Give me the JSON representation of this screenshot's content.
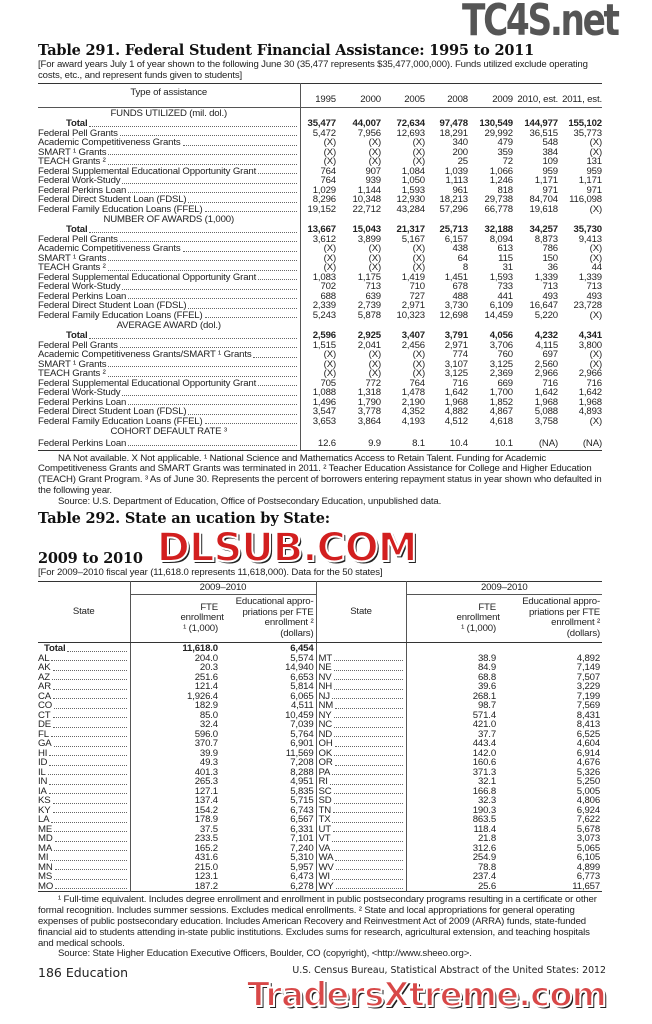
{
  "watermarks": {
    "top": "TC4S.net",
    "middle": "DLSUB.COM",
    "bottom": "TradersXtreme.com"
  },
  "t291": {
    "title": "Table 291. Federal Student Financial Assistance: 1995 to 2011",
    "subtitle": "[For award years July 1 of year shown to the following June 30 (35,477 represents $35,477,000,000). Funds utilized exclude operating costs, etc., and represent funds given to students]",
    "stub_header": "Type of assistance",
    "columns": [
      "1995",
      "2000",
      "2005",
      "2008",
      "2009",
      "2010, est.",
      "2011, est."
    ],
    "sections": [
      {
        "heading": "FUNDS UTILIZED (mil. dol.)",
        "rows": [
          {
            "label": "Total",
            "bold": true,
            "values": [
              "35,477",
              "44,007",
              "72,634",
              "97,478",
              "130,549",
              "144,977",
              "155,102"
            ]
          },
          {
            "label": "Federal Pell Grants",
            "values": [
              "5,472",
              "7,956",
              "12,693",
              "18,291",
              "29,992",
              "36,515",
              "35,773"
            ]
          },
          {
            "label": "Academic Competitiveness Grants",
            "values": [
              "(X)",
              "(X)",
              "(X)",
              "340",
              "479",
              "548",
              "(X)"
            ]
          },
          {
            "label": "SMART ¹ Grants",
            "values": [
              "(X)",
              "(X)",
              "(X)",
              "200",
              "359",
              "384",
              "(X)"
            ]
          },
          {
            "label": "TEACH Grants ²",
            "values": [
              "(X)",
              "(X)",
              "(X)",
              "25",
              "72",
              "109",
              "131"
            ]
          },
          {
            "label": "Federal Supplemental Educational Opportunity Grant",
            "values": [
              "764",
              "907",
              "1,084",
              "1,039",
              "1,066",
              "959",
              "959"
            ]
          },
          {
            "label": "Federal Work-Study",
            "values": [
              "764",
              "939",
              "1,050",
              "1,113",
              "1,246",
              "1,171",
              "1,171"
            ]
          },
          {
            "label": "Federal Perkins Loan",
            "values": [
              "1,029",
              "1,144",
              "1,593",
              "961",
              "818",
              "971",
              "971"
            ]
          },
          {
            "label": "Federal Direct Student Loan (FDSL)",
            "values": [
              "8,296",
              "10,348",
              "12,930",
              "18,213",
              "29,738",
              "84,704",
              "116,098"
            ]
          },
          {
            "label": "Federal Family Education Loans (FFEL)",
            "values": [
              "19,152",
              "22,712",
              "43,284",
              "57,296",
              "66,778",
              "19,618",
              "(X)"
            ]
          }
        ]
      },
      {
        "heading": "NUMBER OF AWARDS (1,000)",
        "rows": [
          {
            "label": "Total",
            "bold": true,
            "values": [
              "13,667",
              "15,043",
              "21,317",
              "25,713",
              "32,188",
              "34,257",
              "35,730"
            ]
          },
          {
            "label": "Federal Pell Grants",
            "values": [
              "3,612",
              "3,899",
              "5,167",
              "6,157",
              "8,094",
              "8,873",
              "9,413"
            ]
          },
          {
            "label": "Academic Competitiveness Grants",
            "values": [
              "(X)",
              "(X)",
              "(X)",
              "438",
              "613",
              "786",
              "(X)"
            ]
          },
          {
            "label": "SMART ¹ Grants",
            "values": [
              "(X)",
              "(X)",
              "(X)",
              "64",
              "115",
              "150",
              "(X)"
            ]
          },
          {
            "label": "TEACH Grants ²",
            "values": [
              "(X)",
              "(X)",
              "(X)",
              "8",
              "31",
              "36",
              "44"
            ]
          },
          {
            "label": "Federal Supplemental Educational Opportunity Grant",
            "values": [
              "1,083",
              "1,175",
              "1,419",
              "1,451",
              "1,593",
              "1,339",
              "1,339"
            ]
          },
          {
            "label": "Federal Work-Study",
            "values": [
              "702",
              "713",
              "710",
              "678",
              "733",
              "713",
              "713"
            ]
          },
          {
            "label": "Federal Perkins Loan",
            "values": [
              "688",
              "639",
              "727",
              "488",
              "441",
              "493",
              "493"
            ]
          },
          {
            "label": "Federal Direct Student Loan (FDSL)",
            "values": [
              "2,339",
              "2,739",
              "2,971",
              "3,730",
              "6,109",
              "16,647",
              "23,728"
            ]
          },
          {
            "label": "Federal Family Education Loans (FFEL)",
            "values": [
              "5,243",
              "5,878",
              "10,323",
              "12,698",
              "14,459",
              "5,220",
              "(X)"
            ]
          }
        ]
      },
      {
        "heading": "AVERAGE AWARD (dol.)",
        "rows": [
          {
            "label": "Total",
            "bold": true,
            "values": [
              "2,596",
              "2,925",
              "3,407",
              "3,791",
              "4,056",
              "4,232",
              "4,341"
            ]
          },
          {
            "label": "Federal Pell Grants",
            "values": [
              "1,515",
              "2,041",
              "2,456",
              "2,971",
              "3,706",
              "4,115",
              "3,800"
            ]
          },
          {
            "label": "Academic Competitiveness Grants/SMART ¹ Grants",
            "values": [
              "(X)",
              "(X)",
              "(X)",
              "774",
              "760",
              "697",
              "(X)"
            ]
          },
          {
            "label": "SMART ¹ Grants",
            "values": [
              "(X)",
              "(X)",
              "(X)",
              "3,107",
              "3,125",
              "2,560",
              "(X)"
            ]
          },
          {
            "label": "TEACH Grants ²",
            "values": [
              "(X)",
              "(X)",
              "(X)",
              "3,125",
              "2,369",
              "2,966",
              "2,966"
            ]
          },
          {
            "label": "Federal Supplemental Educational Opportunity Grant",
            "values": [
              "705",
              "772",
              "764",
              "716",
              "669",
              "716",
              "716"
            ]
          },
          {
            "label": "Federal Work-Study",
            "values": [
              "1,088",
              "1,318",
              "1,478",
              "1,642",
              "1,700",
              "1,642",
              "1,642"
            ]
          },
          {
            "label": "Federal Perkins Loan",
            "values": [
              "1,496",
              "1,790",
              "2,190",
              "1,968",
              "1,852",
              "1,968",
              "1,968"
            ]
          },
          {
            "label": "Federal Direct Student Loan (FDSL)",
            "values": [
              "3,547",
              "3,778",
              "4,352",
              "4,882",
              "4,867",
              "5,088",
              "4,893"
            ]
          },
          {
            "label": "Federal Family Education Loans (FFEL)",
            "values": [
              "3,653",
              "3,864",
              "4,193",
              "4,512",
              "4,618",
              "3,758",
              "(X)"
            ]
          }
        ]
      },
      {
        "heading": "COHORT DEFAULT RATE ³",
        "rows": [
          {
            "label": "Federal Perkins Loan",
            "values": [
              "12.6",
              "9.9",
              "8.1",
              "10.4",
              "10.1",
              "(NA)",
              "(NA)"
            ]
          }
        ]
      }
    ],
    "footnote": "NA Not available. X Not applicable. ¹ National Science and Mathematics Access to Retain Talent. Funding for Academic Competitiveness Grants and SMART Grants was terminated in 2011. ² Teacher Education Assistance for College and Higher Education (TEACH) Grant Program. ³ As of June 30. Represents the percent of borrowers entering repayment status in year shown who defaulted in the following year.",
    "source": "Source: U.S. Department of Education, Office of Postsecondary Education, unpublished data."
  },
  "t292": {
    "title_a": "Table 292. State an",
    "title_b": "ucation by State:",
    "title_c": "2009 to 2010",
    "subtitle": "[For 2009–2010 fiscal year (11,618.0 represents 11,618,000). Data for the 50 states]",
    "state_header": "State",
    "period": "2009–2010",
    "col_fte": "FTE enrollment ¹ (1,000)",
    "col_appr": "Educational appro- priations per FTE enrollment ² (dollars)",
    "total": {
      "label": "Total",
      "fte": "11,618.0",
      "appr": "6,454"
    },
    "left": [
      [
        "AL",
        "204.0",
        "5,574"
      ],
      [
        "AK",
        "20.3",
        "14,940"
      ],
      [
        "AZ",
        "251.6",
        "6,653"
      ],
      [
        "AR",
        "121.4",
        "5,814"
      ],
      [
        "CA",
        "1,926.4",
        "6,065"
      ],
      [
        "CO",
        "182.9",
        "4,511"
      ],
      [
        "CT",
        "85.0",
        "10,459"
      ],
      [
        "DE",
        "32.4",
        "7,039"
      ],
      [
        "FL",
        "596.0",
        "5,764"
      ],
      [
        "GA",
        "370.7",
        "6,901"
      ],
      [
        "HI",
        "39.9",
        "11,569"
      ],
      [
        "ID",
        "49.3",
        "7,208"
      ],
      [
        "IL",
        "401.3",
        "8,288"
      ],
      [
        "IN",
        "265.3",
        "4,951"
      ],
      [
        "IA",
        "127.1",
        "5,835"
      ],
      [
        "KS",
        "137.4",
        "5,715"
      ],
      [
        "KY",
        "154.2",
        "6,743"
      ],
      [
        "LA",
        "178.9",
        "6,567"
      ],
      [
        "ME",
        "37.5",
        "6,331"
      ],
      [
        "MD",
        "233.5",
        "7,101"
      ],
      [
        "MA",
        "165.2",
        "7,240"
      ],
      [
        "MI",
        "431.6",
        "5,310"
      ],
      [
        "MN",
        "215.0",
        "5,957"
      ],
      [
        "MS",
        "123.1",
        "6,473"
      ],
      [
        "MO",
        "187.2",
        "6,278"
      ]
    ],
    "right": [
      [
        "MT",
        "38.9",
        "4,892"
      ],
      [
        "NE",
        "84.9",
        "7,149"
      ],
      [
        "NV",
        "68.8",
        "7,507"
      ],
      [
        "NH",
        "39.6",
        "3,229"
      ],
      [
        "NJ",
        "268.1",
        "7,199"
      ],
      [
        "NM",
        "98.7",
        "7,569"
      ],
      [
        "NY",
        "571.4",
        "8,431"
      ],
      [
        "NC",
        "421.0",
        "8,413"
      ],
      [
        "ND",
        "37.7",
        "6,525"
      ],
      [
        "OH",
        "443.4",
        "4,604"
      ],
      [
        "OK",
        "142.0",
        "6,914"
      ],
      [
        "OR",
        "160.6",
        "4,676"
      ],
      [
        "PA",
        "371.3",
        "5,326"
      ],
      [
        "RI",
        "32.1",
        "5,250"
      ],
      [
        "SC",
        "166.8",
        "5,005"
      ],
      [
        "SD",
        "32.3",
        "4,806"
      ],
      [
        "TN",
        "190.3",
        "6,924"
      ],
      [
        "TX",
        "863.5",
        "7,622"
      ],
      [
        "UT",
        "118.4",
        "5,678"
      ],
      [
        "VT",
        "21.8",
        "3,073"
      ],
      [
        "VA",
        "312.6",
        "5,065"
      ],
      [
        "WA",
        "254.9",
        "6,105"
      ],
      [
        "WV",
        "78.8",
        "4,899"
      ],
      [
        "WI",
        "237.4",
        "6,773"
      ],
      [
        "WY",
        "25.6",
        "11,657"
      ]
    ],
    "footnote": "¹ Full-time equivalent. Includes degree enrollment and enrollment in public postsecondary programs resulting in a certificate or other formal recognition. Includes summer sessions. Excludes medical enrollments. ² State and local appropriations for general operating expenses of public postsecondary education. Includes American Recovery and Reinvestment Act of 2009 (ARRA) funds, state-funded financial aid to students attending in-state public institutions. Excludes sums for research, agricultural extension, and teaching hospitals and medical schools.",
    "source": "Source: State Higher Education Executive Officers, Boulder, CO (copyright), <http://www.sheeo.org>."
  },
  "footer": {
    "page": "186  Education",
    "census": "U.S. Census Bureau, Statistical Abstract of the United States: 2012"
  }
}
